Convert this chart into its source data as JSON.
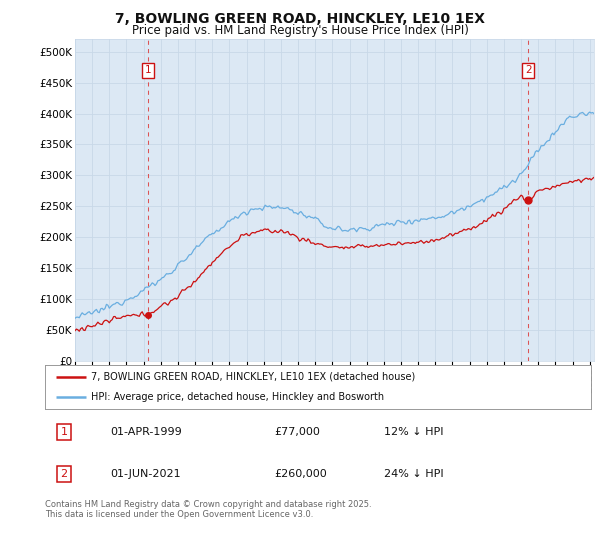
{
  "title": "7, BOWLING GREEN ROAD, HINCKLEY, LE10 1EX",
  "subtitle": "Price paid vs. HM Land Registry's House Price Index (HPI)",
  "ylim": [
    0,
    520000
  ],
  "yticks": [
    0,
    50000,
    100000,
    150000,
    200000,
    250000,
    300000,
    350000,
    400000,
    450000,
    500000
  ],
  "ytick_labels": [
    "£0",
    "£50K",
    "£100K",
    "£150K",
    "£200K",
    "£250K",
    "£300K",
    "£350K",
    "£400K",
    "£450K",
    "£500K"
  ],
  "hpi_color": "#6aaee0",
  "price_color": "#cc1111",
  "dashed_color": "#dd4444",
  "sale1_label": "01-APR-1999",
  "sale1_price": "£77,000",
  "sale1_info": "12% ↓ HPI",
  "sale2_label": "01-JUN-2021",
  "sale2_price": "£260,000",
  "sale2_info": "24% ↓ HPI",
  "legend1": "7, BOWLING GREEN ROAD, HINCKLEY, LE10 1EX (detached house)",
  "legend2": "HPI: Average price, detached house, Hinckley and Bosworth",
  "footnote": "Contains HM Land Registry data © Crown copyright and database right 2025.\nThis data is licensed under the Open Government Licence v3.0.",
  "background_color": "#ffffff",
  "grid_color": "#c8d8e8",
  "title_fontsize": 10,
  "subtitle_fontsize": 8.5,
  "tick_fontsize": 7.5,
  "axis_bg": "#dce8f4"
}
